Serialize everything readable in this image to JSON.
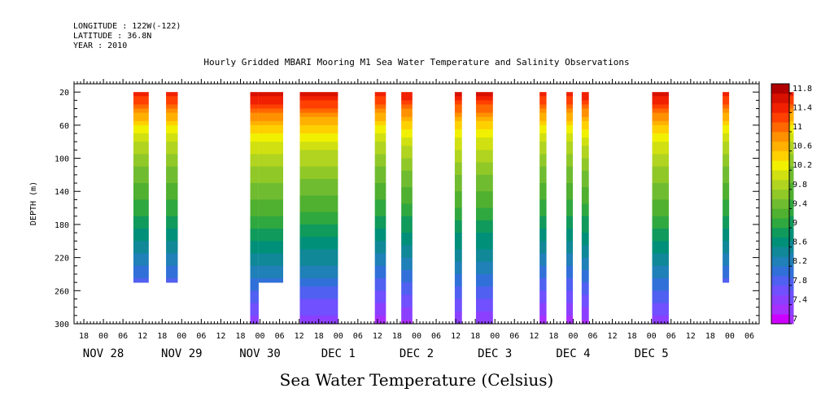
{
  "header": {
    "longitude": "LONGITUDE : 122W(-122)",
    "latitude": "LATITUDE : 36.8N",
    "year": "YEAR : 2010"
  },
  "chart_data": {
    "type": "heatmap",
    "title": "Hourly Gridded MBARI Mooring M1 Sea Water Temperature and Salinity Observations",
    "ylabel": "DEPTH (m)",
    "footer": "Sea Water Temperature (Celsius)",
    "y_range_m": [
      10,
      300
    ],
    "y_inverted": true,
    "y_ticks": [
      20,
      60,
      100,
      140,
      180,
      220,
      260,
      300
    ],
    "x_range_hours": [
      -9,
      201
    ],
    "x_origin": "NOV 28 00",
    "hour_tick_labels": [
      "18",
      "00",
      "06",
      "12",
      "18",
      "00",
      "06",
      "12",
      "18",
      "00",
      "06",
      "12",
      "18",
      "00",
      "06",
      "12",
      "18",
      "00",
      "06",
      "12",
      "18",
      "00",
      "06",
      "12",
      "18",
      "00",
      "06",
      "12",
      "18",
      "00",
      "06",
      "12",
      "18",
      "00",
      "06",
      "12",
      "18",
      "00",
      "06",
      "12",
      "18",
      "00",
      "06",
      "12"
    ],
    "date_labels": [
      {
        "text": "NOV 28",
        "hour": 0
      },
      {
        "text": "NOV 29",
        "hour": 24
      },
      {
        "text": "NOV 30",
        "hour": 48
      },
      {
        "text": "DEC  1",
        "hour": 72
      },
      {
        "text": "DEC  2",
        "hour": 96
      },
      {
        "text": "DEC  3",
        "hour": 120
      },
      {
        "text": "DEC  4",
        "hour": 144
      },
      {
        "text": "DEC  5",
        "hour": 168
      }
    ],
    "colorbar": {
      "levels": [
        7,
        7.2,
        7.4,
        7.6,
        7.8,
        8,
        8.2,
        8.4,
        8.6,
        8.8,
        9,
        9.2,
        9.4,
        9.6,
        9.8,
        10,
        10.2,
        10.4,
        10.6,
        10.8,
        11,
        11.2,
        11.4,
        11.6,
        11.8,
        12
      ],
      "colors": [
        "#cc00ff",
        "#a830ff",
        "#8c40ff",
        "#7050ff",
        "#5060f0",
        "#3070d8",
        "#2080b8",
        "#108898",
        "#00907a",
        "#109a5c",
        "#30a840",
        "#50b030",
        "#70bc30",
        "#90c828",
        "#b0d420",
        "#d0e010",
        "#f0f000",
        "#ffd000",
        "#ffb000",
        "#ff9000",
        "#ff6800",
        "#ff4000",
        "#f02000",
        "#d81000",
        "#b00000"
      ],
      "tick_labels": [
        "7",
        "7.4",
        "7.8",
        "8.2",
        "8.6",
        "9",
        "9.4",
        "9.8",
        "10.2",
        "10.6",
        "11",
        "11.4",
        "11.8"
      ]
    },
    "profile_temperature_c": {
      "depth_m": [
        20,
        40,
        60,
        80,
        100,
        120,
        140,
        160,
        180,
        200,
        220,
        240,
        260,
        280,
        300
      ],
      "values": [
        11.6,
        11.0,
        10.4,
        10.0,
        9.75,
        9.5,
        9.3,
        9.1,
        8.85,
        8.6,
        8.35,
        8.1,
        7.8,
        7.55,
        7.3
      ]
    },
    "observation_segments": [
      {
        "start_hour": 33.2,
        "end_hour": 37.9,
        "depth_max_m": 250,
        "offset_c": 0.0
      },
      {
        "start_hour": 43.2,
        "end_hour": 46.8,
        "depth_max_m": 250,
        "offset_c": 0.0
      },
      {
        "start_hour": 69.0,
        "end_hour": 71.6,
        "depth_max_m": 300,
        "offset_c": 0.2
      },
      {
        "start_hour": 71.6,
        "end_hour": 79.1,
        "depth_max_m": 250,
        "offset_c": 0.2
      },
      {
        "start_hour": 84.2,
        "end_hour": 95.9,
        "depth_max_m": 300,
        "offset_c": 0.15
      },
      {
        "start_hour": 107.2,
        "end_hour": 110.6,
        "depth_max_m": 300,
        "offset_c": 0.0
      },
      {
        "start_hour": 115.3,
        "end_hour": 118.7,
        "depth_max_m": 300,
        "offset_c": 0.05
      },
      {
        "start_hour": 131.7,
        "end_hour": 133.9,
        "depth_max_m": 300,
        "offset_c": 0.1
      },
      {
        "start_hour": 138.2,
        "end_hour": 143.4,
        "depth_max_m": 300,
        "offset_c": 0.1
      },
      {
        "start_hour": 157.7,
        "end_hour": 159.8,
        "depth_max_m": 300,
        "offset_c": 0.0
      },
      {
        "start_hour": 165.9,
        "end_hour": 167.9,
        "depth_max_m": 300,
        "offset_c": 0.0
      },
      {
        "start_hour": 170.6,
        "end_hour": 172.8,
        "depth_max_m": 300,
        "offset_c": 0.05
      },
      {
        "start_hour": 192.2,
        "end_hour": 197.3,
        "depth_max_m": 300,
        "offset_c": 0.2
      },
      {
        "start_hour": 213.8,
        "end_hour": 215.8,
        "depth_max_m": 250,
        "offset_c": 0.0
      },
      {
        "start_hour": 233.8,
        "end_hour": 235.6,
        "depth_max_m": 300,
        "offset_c": 0.0
      },
      {
        "start_hour": 266.8,
        "end_hour": 268.9,
        "depth_max_m": 300,
        "offset_c": 0.0
      }
    ]
  }
}
